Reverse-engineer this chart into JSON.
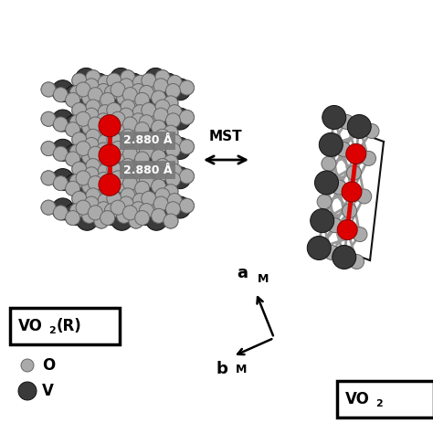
{
  "bg_color": "#ffffff",
  "mst_label": "MST",
  "dist1_label": "2.880 Å",
  "dist2_label": "2.880 Å",
  "label_O": "O",
  "label_V": "V",
  "vo2r_label": "VO",
  "vo2r_sub": "2",
  "vo2r_suffix": "(R)",
  "vo2m_label": "VO",
  "vo2m_sub": "2",
  "atom_V_color": "#3a3a3a",
  "atom_V_edge": "#111111",
  "atom_O_color": "#aaaaaa",
  "atom_O_edge": "#666666",
  "atom_red_color": "#dd0000",
  "bond_color": "#888888",
  "stick_color": "#999999",
  "cell_color": "#111111",
  "dist_box_color": "#777777",
  "dist_text_color": "#ffffff"
}
